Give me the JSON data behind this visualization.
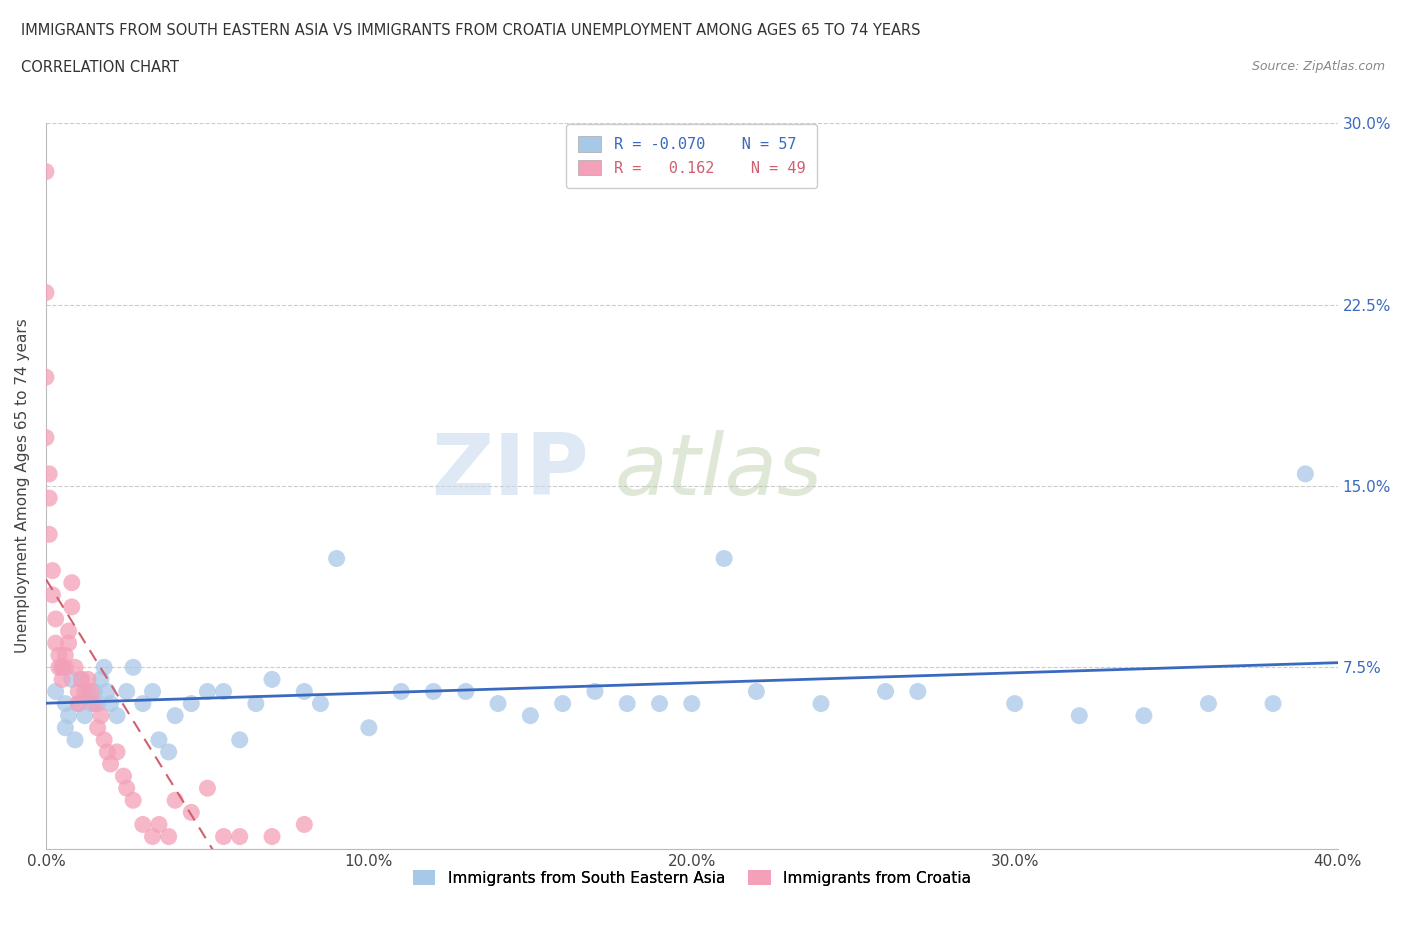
{
  "title_line1": "IMMIGRANTS FROM SOUTH EASTERN ASIA VS IMMIGRANTS FROM CROATIA UNEMPLOYMENT AMONG AGES 65 TO 74 YEARS",
  "title_line2": "CORRELATION CHART",
  "source_text": "Source: ZipAtlas.com",
  "ylabel": "Unemployment Among Ages 65 to 74 years",
  "xlim": [
    0.0,
    0.4
  ],
  "ylim": [
    0.0,
    0.3
  ],
  "xtick_vals": [
    0.0,
    0.1,
    0.2,
    0.3,
    0.4
  ],
  "xticklabels": [
    "0.0%",
    "10.0%",
    "20.0%",
    "30.0%",
    "40.0%"
  ],
  "ytick_vals": [
    0.0,
    0.075,
    0.15,
    0.225,
    0.3
  ],
  "yticklabels": [
    "",
    "7.5%",
    "15.0%",
    "22.5%",
    "30.0%"
  ],
  "color_sea": "#a8c8e8",
  "color_croatia": "#f4a0b8",
  "color_sea_line": "#3a6abf",
  "color_croatia_line": "#d06070",
  "watermark_zip": "ZIP",
  "watermark_atlas": "atlas",
  "sea_x": [
    0.003,
    0.005,
    0.006,
    0.006,
    0.007,
    0.008,
    0.009,
    0.01,
    0.011,
    0.012,
    0.013,
    0.014,
    0.015,
    0.016,
    0.017,
    0.018,
    0.019,
    0.02,
    0.022,
    0.025,
    0.027,
    0.03,
    0.033,
    0.035,
    0.038,
    0.04,
    0.045,
    0.05,
    0.055,
    0.06,
    0.065,
    0.07,
    0.08,
    0.085,
    0.09,
    0.1,
    0.11,
    0.12,
    0.13,
    0.14,
    0.15,
    0.16,
    0.17,
    0.18,
    0.19,
    0.2,
    0.21,
    0.22,
    0.24,
    0.26,
    0.27,
    0.3,
    0.32,
    0.34,
    0.36,
    0.38,
    0.39
  ],
  "sea_y": [
    0.065,
    0.075,
    0.06,
    0.05,
    0.055,
    0.07,
    0.045,
    0.06,
    0.07,
    0.055,
    0.065,
    0.06,
    0.065,
    0.06,
    0.07,
    0.075,
    0.065,
    0.06,
    0.055,
    0.065,
    0.075,
    0.06,
    0.065,
    0.045,
    0.04,
    0.055,
    0.06,
    0.065,
    0.065,
    0.045,
    0.06,
    0.07,
    0.065,
    0.06,
    0.12,
    0.05,
    0.065,
    0.065,
    0.065,
    0.06,
    0.055,
    0.06,
    0.065,
    0.06,
    0.06,
    0.06,
    0.12,
    0.065,
    0.06,
    0.065,
    0.065,
    0.06,
    0.055,
    0.055,
    0.06,
    0.06,
    0.155
  ],
  "croatia_x": [
    0.0,
    0.0,
    0.0,
    0.0,
    0.001,
    0.001,
    0.001,
    0.002,
    0.002,
    0.003,
    0.003,
    0.004,
    0.004,
    0.005,
    0.005,
    0.006,
    0.006,
    0.007,
    0.007,
    0.008,
    0.008,
    0.009,
    0.01,
    0.01,
    0.011,
    0.012,
    0.013,
    0.014,
    0.015,
    0.016,
    0.017,
    0.018,
    0.019,
    0.02,
    0.022,
    0.024,
    0.025,
    0.027,
    0.03,
    0.033,
    0.035,
    0.038,
    0.04,
    0.045,
    0.05,
    0.055,
    0.06,
    0.07,
    0.08
  ],
  "croatia_y": [
    0.28,
    0.23,
    0.195,
    0.17,
    0.155,
    0.145,
    0.13,
    0.115,
    0.105,
    0.095,
    0.085,
    0.08,
    0.075,
    0.075,
    0.07,
    0.075,
    0.08,
    0.085,
    0.09,
    0.1,
    0.11,
    0.075,
    0.065,
    0.06,
    0.07,
    0.065,
    0.07,
    0.065,
    0.06,
    0.05,
    0.055,
    0.045,
    0.04,
    0.035,
    0.04,
    0.03,
    0.025,
    0.02,
    0.01,
    0.005,
    0.01,
    0.005,
    0.02,
    0.015,
    0.025,
    0.005,
    0.005,
    0.005,
    0.01
  ]
}
